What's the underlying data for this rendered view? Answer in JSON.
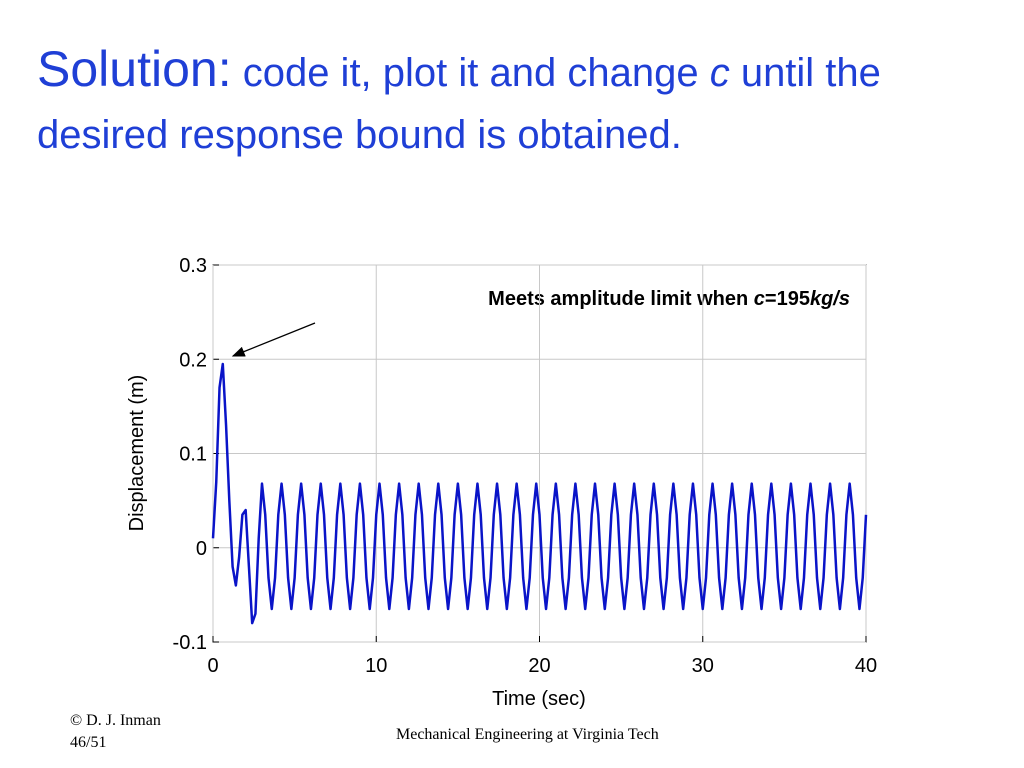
{
  "title_parts": [
    {
      "text": "Solution:",
      "size": "big",
      "italic": false
    },
    {
      "text": " code it, plot it and change ",
      "size": "normal",
      "italic": false
    },
    {
      "text": "c",
      "size": "normal",
      "italic": true
    },
    {
      "text": " until the desired response bound is obtained.",
      "size": "normal",
      "italic": false
    }
  ],
  "chart_data": {
    "type": "line",
    "xlabel": "Time (sec)",
    "ylabel": "Displacement (m)",
    "annotation_parts": [
      {
        "text": "Meets amplitude limit when ",
        "italic": false
      },
      {
        "text": "c",
        "italic": true
      },
      {
        "text": "=195",
        "italic": false
      },
      {
        "text": "kg/s",
        "italic": true
      }
    ],
    "color": "#0a14c8",
    "xlim": [
      0,
      40
    ],
    "xticks": [
      0,
      10,
      20,
      30,
      40
    ],
    "ylim": [
      -0.1,
      0.3
    ],
    "yticks": [
      -0.1,
      0,
      0.1,
      0.2,
      0.3
    ],
    "grid": true,
    "x": [
      0,
      0.2,
      0.4,
      0.6,
      0.8,
      1,
      1.2,
      1.4,
      1.6,
      1.8,
      2,
      2.2,
      2.4,
      2.6,
      2.8,
      3,
      3.2,
      3.4,
      3.6,
      3.8,
      4,
      4.2,
      4.4,
      4.6,
      4.8,
      5,
      5.2,
      5.4,
      5.6,
      5.8,
      6,
      6.2,
      6.4,
      6.6,
      6.8,
      7,
      7.2,
      7.4,
      7.6,
      7.8,
      8,
      8.2,
      8.4,
      8.6,
      8.8,
      9,
      9.2,
      9.4,
      9.6,
      9.8,
      10,
      10.2,
      10.4,
      10.6,
      10.8,
      11,
      11.2,
      11.4,
      11.6,
      11.8,
      12,
      12.2,
      12.4,
      12.6,
      12.8,
      13,
      13.2,
      13.4,
      13.6,
      13.8,
      14,
      14.2,
      14.4,
      14.6,
      14.8,
      15,
      15.2,
      15.4,
      15.6,
      15.8,
      16,
      16.2,
      16.4,
      16.6,
      16.8,
      17,
      17.2,
      17.4,
      17.6,
      17.8,
      18,
      18.2,
      18.4,
      18.6,
      18.8,
      19,
      19.2,
      19.4,
      19.6,
      19.8,
      20,
      20.2,
      20.4,
      20.6,
      20.8,
      21,
      21.2,
      21.4,
      21.6,
      21.8,
      22,
      22.2,
      22.4,
      22.6,
      22.8,
      23,
      23.2,
      23.4,
      23.6,
      23.8,
      24,
      24.2,
      24.4,
      24.6,
      24.8,
      25,
      25.2,
      25.4,
      25.6,
      25.8,
      26,
      26.2,
      26.4,
      26.6,
      26.8,
      27,
      27.2,
      27.4,
      27.6,
      27.8,
      28,
      28.2,
      28.4,
      28.6,
      28.8,
      29,
      29.2,
      29.4,
      29.6,
      29.8,
      30,
      30.2,
      30.4,
      30.6,
      30.8,
      31,
      31.2,
      31.4,
      31.6,
      31.8,
      32,
      32.2,
      32.4,
      32.6,
      32.8,
      33,
      33.2,
      33.4,
      33.6,
      33.8,
      34,
      34.2,
      34.4,
      34.6,
      34.8,
      35,
      35.2,
      35.4,
      35.6,
      35.8,
      36,
      36.2,
      36.4,
      36.6,
      36.8,
      37,
      37.2,
      37.4,
      37.6,
      37.8,
      38,
      38.2,
      38.4,
      38.6,
      38.8,
      39,
      39.2,
      39.4,
      39.6,
      39.8,
      40
    ],
    "values": [
      0.01,
      0.07,
      0.17,
      0.195,
      0.13,
      0.05,
      -0.02,
      -0.04,
      -0.01,
      0.035,
      0.04,
      -0.02,
      -0.08,
      -0.07,
      0.01,
      0.068,
      0.035,
      -0.032,
      -0.065,
      -0.032,
      0.035,
      0.068,
      0.035,
      -0.032,
      -0.065,
      -0.032,
      0.035,
      0.068,
      0.035,
      -0.032,
      -0.065,
      -0.032,
      0.035,
      0.068,
      0.035,
      -0.032,
      -0.065,
      -0.032,
      0.035,
      0.068,
      0.035,
      -0.032,
      -0.065,
      -0.032,
      0.035,
      0.068,
      0.035,
      -0.032,
      -0.065,
      -0.032,
      0.035,
      0.068,
      0.035,
      -0.032,
      -0.065,
      -0.032,
      0.035,
      0.068,
      0.035,
      -0.032,
      -0.065,
      -0.032,
      0.035,
      0.068,
      0.035,
      -0.032,
      -0.065,
      -0.032,
      0.035,
      0.068,
      0.035,
      -0.032,
      -0.065,
      -0.032,
      0.035,
      0.068,
      0.035,
      -0.032,
      -0.065,
      -0.032,
      0.035,
      0.068,
      0.035,
      -0.032,
      -0.065,
      -0.032,
      0.035,
      0.068,
      0.035,
      -0.032,
      -0.065,
      -0.032,
      0.035,
      0.068,
      0.035,
      -0.032,
      -0.065,
      -0.032,
      0.035,
      0.068,
      0.035,
      -0.032,
      -0.065,
      -0.032,
      0.035,
      0.068,
      0.035,
      -0.032,
      -0.065,
      -0.032,
      0.035,
      0.068,
      0.035,
      -0.032,
      -0.065,
      -0.032,
      0.035,
      0.068,
      0.035,
      -0.032,
      -0.065,
      -0.032,
      0.035,
      0.068,
      0.035,
      -0.032,
      -0.065,
      -0.032,
      0.035,
      0.068,
      0.035,
      -0.032,
      -0.065,
      -0.032,
      0.035,
      0.068,
      0.035,
      -0.032,
      -0.065,
      -0.032,
      0.035,
      0.068,
      0.035,
      -0.032,
      -0.065,
      -0.032,
      0.035,
      0.068,
      0.035,
      -0.032,
      -0.065,
      -0.032,
      0.035,
      0.068,
      0.035,
      -0.032,
      -0.065,
      -0.032,
      0.035,
      0.068,
      0.035,
      -0.032,
      -0.065,
      -0.032,
      0.035,
      0.068,
      0.035,
      -0.032,
      -0.065,
      -0.032,
      0.035,
      0.068,
      0.035,
      -0.032,
      -0.065,
      -0.032,
      0.035,
      0.068,
      0.035,
      -0.032,
      -0.065,
      -0.032,
      0.035,
      0.068,
      0.035,
      -0.032,
      -0.065,
      -0.032,
      0.035,
      0.068,
      0.035,
      -0.032,
      -0.065,
      -0.032,
      0.035,
      0.068,
      0.035,
      -0.032,
      -0.065,
      -0.032,
      0.035
    ]
  },
  "footer": {
    "author": "© D. J. Inman",
    "page": "46/51",
    "institution": "Mechanical Engineering at Virginia Tech"
  }
}
